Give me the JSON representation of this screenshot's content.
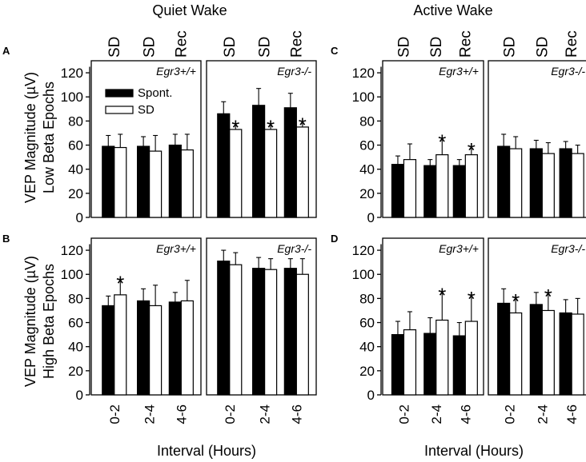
{
  "figure": {
    "titles": [
      "Quiet Wake",
      "Active Wake"
    ],
    "panel_letters": [
      "A",
      "B",
      "C",
      "D"
    ],
    "ylabels": [
      {
        "line1": "VEP Magnitude (µV)",
        "line2": "Low Beta Epochs"
      },
      {
        "line1": "VEP Magnitude (µV)",
        "line2": "High Beta Epochs"
      }
    ],
    "xlabel": "Interval (Hours)",
    "x_tick_labels": [
      "0-2",
      "2-4",
      "4-6"
    ],
    "condition_labels": [
      "SD",
      "SD",
      "Rec"
    ],
    "yticks": [
      "0",
      "20",
      "40",
      "60",
      "80",
      "100",
      "120"
    ],
    "legend": {
      "spont": "Spont.",
      "sd": "SD"
    },
    "significance_marker": "*"
  },
  "colors": {
    "spont": "#000000",
    "sd": "#ffffff",
    "axis": "#000000"
  },
  "chart_data": [
    {
      "type": "bar",
      "panel": "A",
      "subpanel": "Egr3+/+",
      "genotype": "Egr3+/+",
      "state": "Quiet Wake",
      "epochs": "Low Beta",
      "categories": [
        "0-2",
        "2-4",
        "4-6"
      ],
      "ylim": [
        0,
        130
      ],
      "series": [
        {
          "name": "Spont.",
          "values": [
            59,
            59,
            60
          ],
          "errors": [
            9,
            8,
            9
          ]
        },
        {
          "name": "SD",
          "values": [
            58,
            55,
            56
          ],
          "errors": [
            11,
            13,
            13
          ]
        }
      ],
      "significant": []
    },
    {
      "type": "bar",
      "panel": "A",
      "subpanel": "Egr3-/-",
      "genotype": "Egr3-/-",
      "state": "Quiet Wake",
      "epochs": "Low Beta",
      "categories": [
        "0-2",
        "2-4",
        "4-6"
      ],
      "ylim": [
        0,
        130
      ],
      "series": [
        {
          "name": "Spont.",
          "values": [
            86,
            93,
            91
          ],
          "errors": [
            10,
            14,
            12
          ]
        },
        {
          "name": "SD",
          "values": [
            73,
            73,
            75
          ],
          "errors": [
            5,
            5,
            5
          ]
        }
      ],
      "significant": [
        0,
        1,
        2
      ]
    },
    {
      "type": "bar",
      "panel": "B",
      "subpanel": "Egr3+/+",
      "genotype": "Egr3+/+",
      "state": "Quiet Wake",
      "epochs": "High Beta",
      "categories": [
        "0-2",
        "2-4",
        "4-6"
      ],
      "ylim": [
        0,
        130
      ],
      "series": [
        {
          "name": "Spont.",
          "values": [
            74,
            78,
            77
          ],
          "errors": [
            8,
            10,
            8
          ]
        },
        {
          "name": "SD",
          "values": [
            83,
            74,
            78
          ],
          "errors": [
            13,
            17,
            17
          ]
        }
      ],
      "significant": [
        0
      ]
    },
    {
      "type": "bar",
      "panel": "B",
      "subpanel": "Egr3-/-",
      "genotype": "Egr3-/-",
      "state": "Quiet Wake",
      "epochs": "High Beta",
      "categories": [
        "0-2",
        "2-4",
        "4-6"
      ],
      "ylim": [
        0,
        130
      ],
      "series": [
        {
          "name": "Spont.",
          "values": [
            111,
            105,
            105
          ],
          "errors": [
            9,
            9,
            8
          ]
        },
        {
          "name": "SD",
          "values": [
            108,
            104,
            100
          ],
          "errors": [
            10,
            9,
            13
          ]
        }
      ],
      "significant": []
    },
    {
      "type": "bar",
      "panel": "C",
      "subpanel": "Egr3+/+",
      "genotype": "Egr3+/+",
      "state": "Active Wake",
      "epochs": "Low Beta",
      "categories": [
        "0-2",
        "2-4",
        "4-6"
      ],
      "ylim": [
        0,
        130
      ],
      "series": [
        {
          "name": "Spont.",
          "values": [
            44,
            43,
            43
          ],
          "errors": [
            7,
            5,
            5
          ]
        },
        {
          "name": "SD",
          "values": [
            48,
            52,
            52
          ],
          "errors": [
            13,
            14,
            7
          ]
        }
      ],
      "significant": [
        1,
        2
      ]
    },
    {
      "type": "bar",
      "panel": "C",
      "subpanel": "Egr3-/-",
      "genotype": "Egr3-/-",
      "state": "Active Wake",
      "epochs": "Low Beta",
      "categories": [
        "0-2",
        "2-4",
        "4-6"
      ],
      "ylim": [
        0,
        130
      ],
      "series": [
        {
          "name": "Spont.",
          "values": [
            59,
            57,
            57
          ],
          "errors": [
            10,
            7,
            6
          ]
        },
        {
          "name": "SD",
          "values": [
            57,
            53,
            53
          ],
          "errors": [
            10,
            9,
            7
          ]
        }
      ],
      "significant": []
    },
    {
      "type": "bar",
      "panel": "D",
      "subpanel": "Egr3+/+",
      "genotype": "Egr3+/+",
      "state": "Active Wake",
      "epochs": "High Beta",
      "categories": [
        "0-2",
        "2-4",
        "4-6"
      ],
      "ylim": [
        0,
        130
      ],
      "series": [
        {
          "name": "Spont.",
          "values": [
            50,
            51,
            49
          ],
          "errors": [
            11,
            13,
            11
          ]
        },
        {
          "name": "SD",
          "values": [
            54,
            62,
            61
          ],
          "errors": [
            15,
            24,
            22
          ]
        }
      ],
      "significant": [
        1,
        2
      ]
    },
    {
      "type": "bar",
      "panel": "D",
      "subpanel": "Egr3-/-",
      "genotype": "Egr3-/-",
      "state": "Active Wake",
      "epochs": "High Beta",
      "categories": [
        "0-2",
        "2-4",
        "4-6"
      ],
      "ylim": [
        0,
        130
      ],
      "series": [
        {
          "name": "Spont.",
          "values": [
            76,
            75,
            68
          ],
          "errors": [
            12,
            10,
            11
          ]
        },
        {
          "name": "SD",
          "values": [
            68,
            70,
            67
          ],
          "errors": [
            13,
            15,
            13
          ]
        }
      ],
      "significant": [
        0,
        1
      ]
    }
  ]
}
